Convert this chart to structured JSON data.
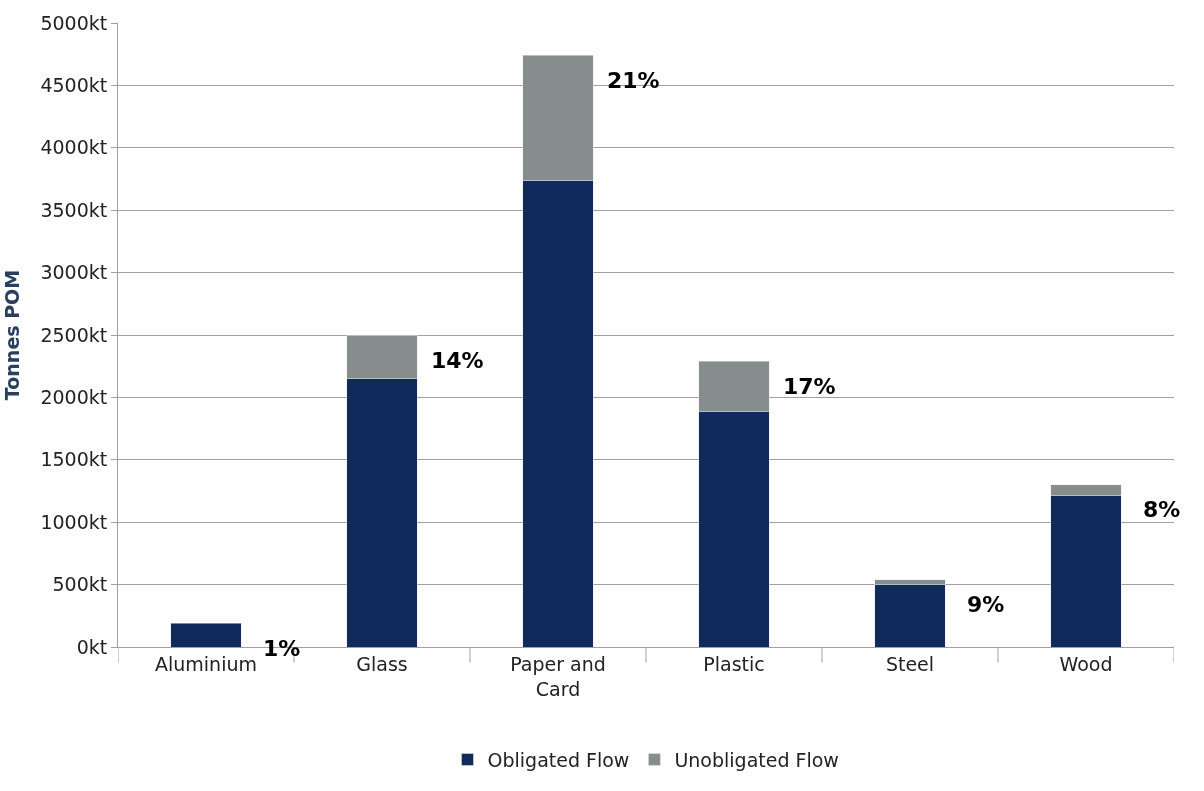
{
  "chart_data": {
    "type": "bar",
    "stacked": true,
    "ylabel": "Tonnes POM",
    "categories": [
      "Aluminium",
      "Glass",
      "Paper and Card",
      "Plastic",
      "Steel",
      "Wood"
    ],
    "series": [
      {
        "name": "Obligated Flow",
        "color": "#112a5c",
        "values": [
          190,
          2150,
          3740,
          1890,
          500,
          1210
        ]
      },
      {
        "name": "Unobligated Flow",
        "color": "#878c8d",
        "values": [
          null,
          350,
          1000,
          400,
          40,
          90
        ]
      }
    ],
    "ylim": [
      0,
      5000
    ],
    "yticks": [
      {
        "value": 0,
        "label": "0kt"
      },
      {
        "value": 500,
        "label": "500kt"
      },
      {
        "value": 1000,
        "label": "1000kt"
      },
      {
        "value": 1500,
        "label": "1500kt"
      },
      {
        "value": 2000,
        "label": "2000kt"
      },
      {
        "value": 2500,
        "label": "2500kt"
      },
      {
        "value": 3000,
        "label": "3000kt"
      },
      {
        "value": 3500,
        "label": "3500kt"
      },
      {
        "value": 4000,
        "label": "4000kt"
      },
      {
        "value": 4500,
        "label": "4500kt"
      },
      {
        "value": 5000,
        "label": "5000kt"
      }
    ],
    "annotations": [
      "1%",
      "14%",
      "21%",
      "17%",
      "9%",
      "8%"
    ],
    "grid": "y",
    "legend": "bottom"
  }
}
